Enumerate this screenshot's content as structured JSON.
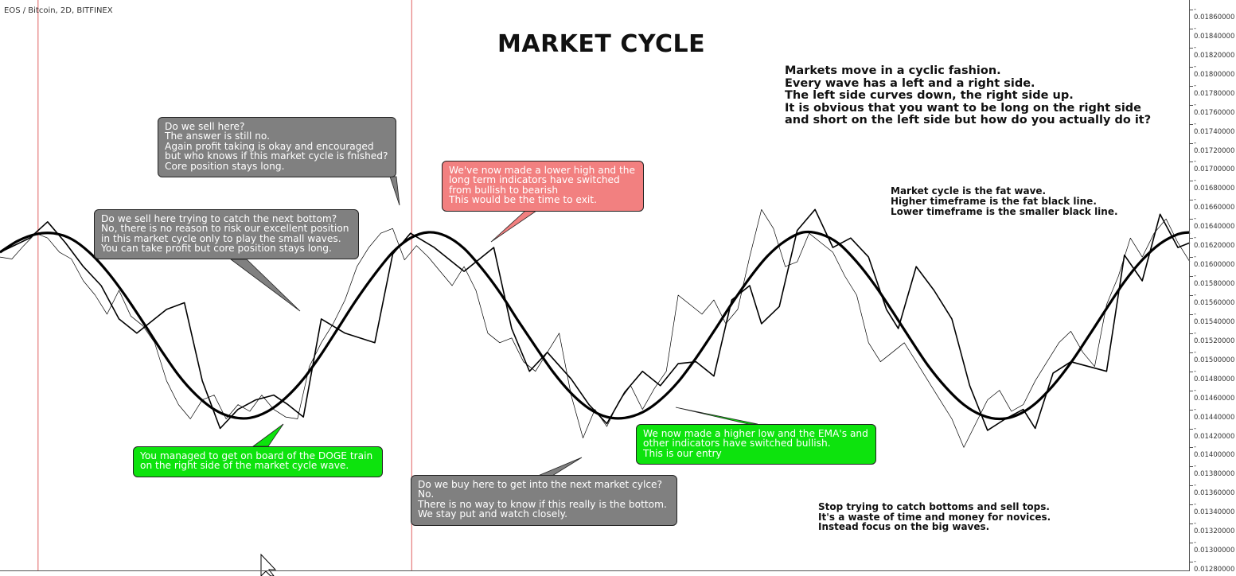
{
  "symbol": "EOS / Bitcoin, 2D, BITFINEX",
  "title": "MARKET CYCLE",
  "notes": {
    "intro": "Markets move in a cyclic fashion.\nEvery wave has a left and a right side.\nThe left side curves down, the right side up.\nIt is obvious that you want to be long on the right side\nand short on the left side but how do you actually do it?",
    "legend": "Market cycle is the fat wave.\nHigher timeframe is the fat black line.\nLower timeframe is the smaller black line.",
    "stop": "Stop trying to catch bottoms and sell tops.\nIt's a waste of time and money for novices.\nInstead focus on the big waves."
  },
  "callouts": {
    "sell_again": "Do we sell here?\nThe answer is still no.\nAgain profit taking is okay and encouraged\nbut who knows if this market cycle is fnished?\nCore position stays long.",
    "sell_bottom": "Do we sell here trying to catch the next bottom?\nNo, there is no reason to risk our excellent position\nin this market cycle only to play the small waves.\nYou can take profit but core position stays long.",
    "lower_high": "We've now made a lower high and the\nlong term indicators have switched\nfrom bullish to bearish\nThis would be the time to exit.",
    "doge": "You managed to get on board of the DOGE train\non the right side of the market cycle wave.",
    "higher_low": "We now made a higher low and the EMA's and\nother indicators have switched bullish.\nThis is our entry",
    "buy_here": "Do we buy here to get into the next market cylce?\nNo.\nThere is no way to know if this really is the bottom.\nWe stay put and watch closely."
  },
  "colors": {
    "gray_box": "#808080",
    "red_box": "#f28080",
    "green_box": "#0de30d",
    "marker_line": "#e06060",
    "wave": "#000000"
  },
  "chart_data": {
    "type": "line",
    "y_axis_position": "right",
    "ylim": [
      0.0127,
      0.0187
    ],
    "y_ticks": [
      "0.01860000",
      "0.01840000",
      "0.01820000",
      "0.01800000",
      "0.01780000",
      "0.01760000",
      "0.01740000",
      "0.01720000",
      "0.01700000",
      "0.01680000",
      "0.01660000",
      "0.01640000",
      "0.01620000",
      "0.01600000",
      "0.01580000",
      "0.01560000",
      "0.01540000",
      "0.01520000",
      "0.01500000",
      "0.01480000",
      "0.01460000",
      "0.01440000",
      "0.01420000",
      "0.01400000",
      "0.01380000",
      "0.01360000",
      "0.01340000",
      "0.01320000",
      "0.01300000",
      "0.01280000"
    ],
    "xlim": [
      0,
      100
    ],
    "vertical_markers_x": [
      3.2,
      34.6
    ],
    "series": [
      {
        "role": "market_cycle_wave",
        "x": [
          0,
          1.5,
          3,
          4.5,
          6,
          7.5,
          9,
          10.5,
          12,
          13.5,
          15,
          16.5,
          18,
          19.5,
          21,
          22.5,
          24,
          25.5,
          27,
          28.5,
          30,
          31.5,
          33,
          34.5,
          36,
          37.5,
          39,
          40.5,
          42,
          43.5,
          45,
          46.5,
          48,
          49.5,
          51,
          52.5,
          54,
          55.5,
          57,
          58.5,
          60,
          61.5,
          63,
          64.5,
          66,
          67.5,
          69,
          70.5,
          72,
          73.5,
          75,
          76.5,
          78,
          79.5,
          81,
          82.5,
          84,
          85.5,
          87,
          88.5,
          90,
          91.5,
          93,
          94.5,
          96,
          97.5,
          99,
          100
        ],
        "values": [
          0.01605,
          0.01617,
          0.01624,
          0.01625,
          0.01619,
          0.01605,
          0.01585,
          0.0156,
          0.01532,
          0.01503,
          0.01476,
          0.01455,
          0.0144,
          0.01432,
          0.01431,
          0.01438,
          0.01452,
          0.01472,
          0.01498,
          0.01527,
          0.01556,
          0.01582,
          0.01605,
          0.0162,
          0.01626,
          0.01622,
          0.01609,
          0.01588,
          0.01563,
          0.01534,
          0.01506,
          0.01479,
          0.01457,
          0.01441,
          0.01432,
          0.01431,
          0.01437,
          0.0145,
          0.01469,
          0.01494,
          0.01522,
          0.01551,
          0.01578,
          0.01601,
          0.01617,
          0.01626,
          0.01624,
          0.01614,
          0.01595,
          0.01571,
          0.01543,
          0.01514,
          0.01486,
          0.01463,
          0.01445,
          0.01434,
          0.0143,
          0.01434,
          0.01446,
          0.01465,
          0.01489,
          0.01517,
          0.01546,
          0.01574,
          0.01597,
          0.01614,
          0.01624,
          0.01626
        ]
      },
      {
        "role": "higher_timeframe",
        "x": [
          0,
          2.5,
          4,
          5.5,
          7,
          8.5,
          10,
          11.5,
          14,
          15.5,
          17,
          18.5,
          20,
          21.5,
          23,
          24.2,
          25.5,
          27,
          29,
          31.5,
          33,
          34.5,
          36.5,
          39,
          40.5,
          41.5,
          43,
          44.5,
          46,
          48,
          49.5,
          51,
          52.5,
          54,
          55.5,
          57,
          58.5,
          60,
          61.5,
          63,
          64,
          65.5,
          67,
          68.5,
          70,
          71.5,
          73,
          74.5,
          75.5,
          77,
          78.5,
          80,
          81.5,
          83,
          84.5,
          86,
          87,
          88.5,
          90,
          91.5,
          93,
          94.5,
          96,
          97.5,
          99,
          100
        ],
        "values": [
          0.01605,
          0.0162,
          0.01637,
          0.01615,
          0.0159,
          0.0157,
          0.01535,
          0.0152,
          0.01545,
          0.01552,
          0.0147,
          0.0142,
          0.0144,
          0.0145,
          0.01455,
          0.01445,
          0.01432,
          0.01535,
          0.0152,
          0.0151,
          0.01603,
          0.01625,
          0.0161,
          0.01585,
          0.016,
          0.0161,
          0.01525,
          0.0148,
          0.015,
          0.01472,
          0.01445,
          0.01425,
          0.01458,
          0.0148,
          0.01465,
          0.01488,
          0.0149,
          0.01475,
          0.01555,
          0.0157,
          0.0153,
          0.01548,
          0.01628,
          0.0165,
          0.0161,
          0.0162,
          0.016,
          0.01545,
          0.01525,
          0.0159,
          0.01565,
          0.01535,
          0.01465,
          0.01418,
          0.0143,
          0.0144,
          0.0142,
          0.01478,
          0.0149,
          0.01485,
          0.0148,
          0.01602,
          0.01575,
          0.01645,
          0.0161,
          0.01615
        ]
      },
      {
        "role": "lower_timeframe",
        "x": [
          0,
          1,
          2,
          3,
          4,
          5,
          6,
          7,
          8,
          9,
          10,
          11,
          12,
          13,
          14,
          15,
          16,
          17,
          18,
          19,
          20,
          21,
          22,
          23,
          24,
          25,
          26,
          27,
          28,
          29,
          30,
          31,
          32,
          33,
          34,
          35,
          36,
          37,
          38,
          39,
          40,
          41,
          42,
          43,
          44,
          45,
          46,
          47,
          48,
          49,
          50,
          51,
          52,
          53,
          54,
          55,
          56,
          57,
          58,
          59,
          60,
          61,
          62,
          63,
          64,
          65,
          66,
          67,
          68,
          69,
          70,
          71,
          72,
          73,
          74,
          75,
          76,
          77,
          78,
          79,
          80,
          81,
          82,
          83,
          84,
          85,
          86,
          87,
          88,
          89,
          90,
          91,
          92,
          93,
          94,
          95,
          96,
          97,
          98,
          99,
          100
        ],
        "values": [
          0.016,
          0.01598,
          0.01612,
          0.01625,
          0.0162,
          0.01605,
          0.01598,
          0.01575,
          0.0156,
          0.0154,
          0.01565,
          0.01538,
          0.01528,
          0.0151,
          0.0147,
          0.01445,
          0.0143,
          0.0145,
          0.01455,
          0.0143,
          0.01445,
          0.01438,
          0.01455,
          0.0144,
          0.01432,
          0.0143,
          0.01485,
          0.0151,
          0.0153,
          0.01555,
          0.0159,
          0.0161,
          0.01625,
          0.0163,
          0.01597,
          0.01612,
          0.016,
          0.01585,
          0.0157,
          0.0159,
          0.01565,
          0.0152,
          0.0151,
          0.01515,
          0.0149,
          0.0148,
          0.015,
          0.0152,
          0.01455,
          0.0141,
          0.0144,
          0.01422,
          0.01448,
          0.01465,
          0.0144,
          0.01462,
          0.0148,
          0.0156,
          0.0155,
          0.0154,
          0.01555,
          0.0153,
          0.01545,
          0.016,
          0.0165,
          0.0163,
          0.0159,
          0.01595,
          0.01625,
          0.01615,
          0.01605,
          0.0158,
          0.0156,
          0.0151,
          0.0149,
          0.015,
          0.0151,
          0.0149,
          0.0147,
          0.0145,
          0.0143,
          0.014,
          0.01425,
          0.0145,
          0.0146,
          0.01438,
          0.01445,
          0.0147,
          0.0149,
          0.0151,
          0.01522,
          0.015,
          0.01485,
          0.0155,
          0.0158,
          0.0162,
          0.016,
          0.01625,
          0.0164,
          0.01615,
          0.01595
        ]
      }
    ]
  }
}
